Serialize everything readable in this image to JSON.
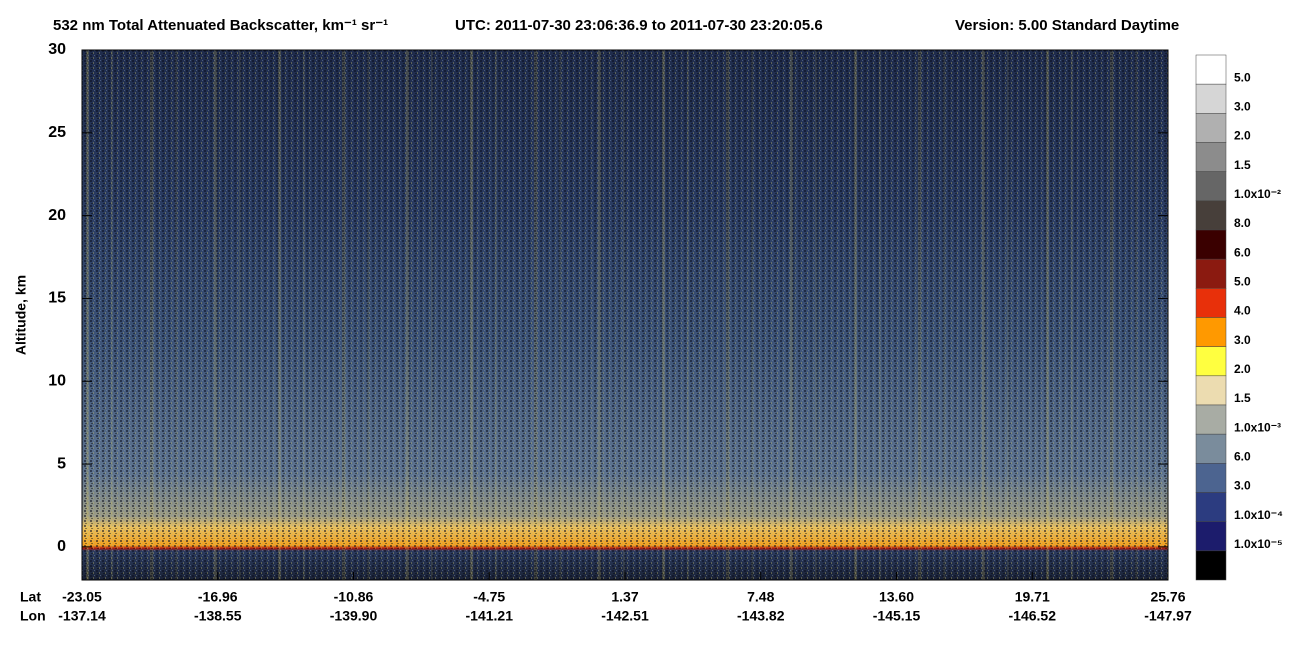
{
  "chart_data": {
    "type": "heatmap",
    "title": "532 nm Total Attenuated Backscatter, km⁻¹ sr⁻¹",
    "utc": "UTC:  2011-07-30 23:06:36.9  to  2011-07-30 23:20:05.6",
    "version": "Version: 5.00  Standard  Daytime",
    "ylabel": "Altitude, km",
    "ylim": [
      -2,
      30
    ],
    "yticks": [
      0,
      5,
      10,
      15,
      20,
      25,
      30
    ],
    "x_rows": [
      {
        "name": "Lat",
        "ticks": [
          -23.05,
          -16.96,
          -10.86,
          -4.75,
          1.37,
          7.48,
          {
            "value": 13.6,
            "label": "13.60"
          },
          19.71,
          25.76
        ]
      },
      {
        "name": "Lon",
        "ticks": [
          -137.14,
          -138.55,
          {
            "value": -139.9,
            "label": "-139.90"
          },
          -141.21,
          -142.51,
          -143.82,
          -145.15,
          -146.52,
          -147.97
        ]
      }
    ],
    "colorbar": {
      "colors": [
        "#ffffff",
        "#d6d6d6",
        "#b0b0b0",
        "#8c8c8c",
        "#666666",
        "#473f3a",
        "#3a0000",
        "#8b1a10",
        "#e8300a",
        "#ff9900",
        "#ffff40",
        "#ecdcb0",
        "#a8aca4",
        "#7a8c9c",
        "#4c6490",
        "#2c3c80",
        "#1c1c6c",
        "#000000"
      ],
      "labels": [
        "5.0",
        "3.0",
        "2.0",
        "1.5",
        "1.0x10⁻²",
        "8.0",
        "6.0",
        "5.0",
        "4.0",
        "3.0",
        "2.0",
        "1.5",
        "1.0x10⁻³",
        "6.0",
        "3.0",
        "1.0x10⁻⁴",
        "1.0x10⁻⁵"
      ]
    }
  }
}
